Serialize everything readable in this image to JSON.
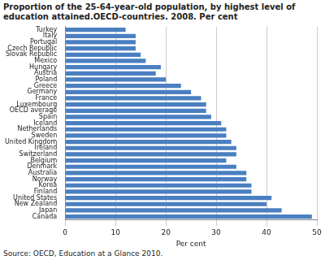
{
  "chart_data": {
    "type": "bar",
    "orientation": "horizontal",
    "title": "Proportion of the 25-64-year-old population, by highest level of education attained.OECD-countries. 2008. Per cent",
    "source": "Source: OECD, Education at a Glance 2010.",
    "x_label": "Per cent",
    "categories": [
      "Turkey",
      "Italy",
      "Portugal",
      "Czech Republic",
      "Slovak Republic",
      "Mexico",
      "Hungary",
      "Austria",
      "Poland",
      "Greece",
      "Germany",
      "France",
      "Luxembourg",
      "OECD average",
      "Spain",
      "Iceland",
      "Netherlands",
      "Sweden",
      "United Kingdom",
      "Ireland",
      "Switzerland",
      "Belgium",
      "Denmark",
      "Australia",
      "Norway",
      "Korea",
      "Finland",
      "United States",
      "New Zealand",
      "Japan",
      "Canada"
    ],
    "values": [
      12,
      14,
      14,
      14,
      15,
      16,
      19,
      18,
      20,
      23,
      25,
      27,
      28,
      28,
      29,
      31,
      32,
      32,
      33,
      34,
      34,
      32,
      34,
      36,
      36,
      37,
      37,
      41,
      40,
      43,
      49
    ],
    "color": "#4a7fc1",
    "xlim": [
      0,
      50
    ],
    "xticks": [
      0,
      10,
      20,
      30,
      40,
      50
    ],
    "grid": true
  }
}
